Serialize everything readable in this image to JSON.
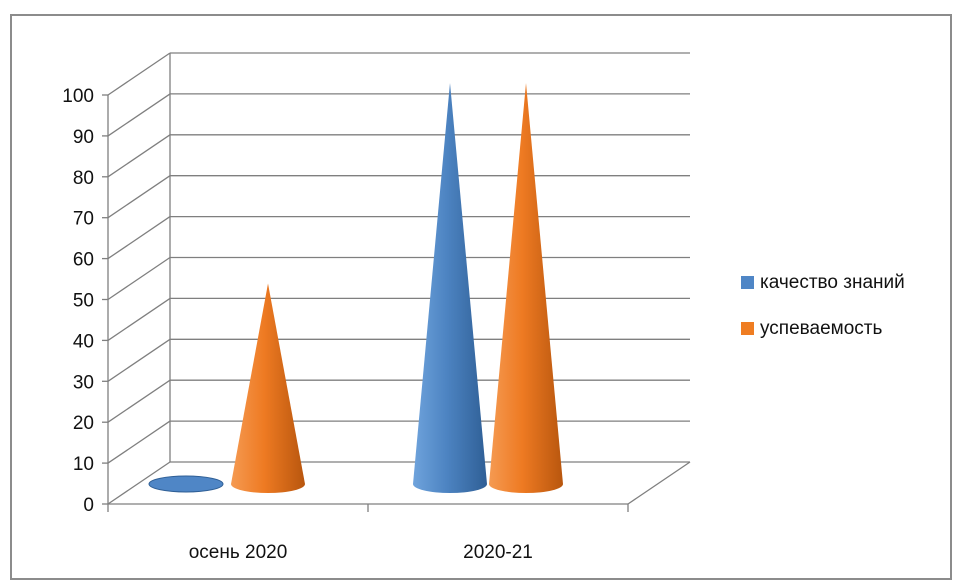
{
  "chart_data": {
    "type": "bar",
    "variant": "3d-cone",
    "title": "",
    "xlabel": "",
    "ylabel": "",
    "categories": [
      "осень 2020",
      "2020-21"
    ],
    "series": [
      {
        "name": "качество знаний",
        "values": [
          0,
          100
        ],
        "color": "#4f86c6"
      },
      {
        "name": "успеваемость",
        "values": [
          50,
          100
        ],
        "color": "#ef7d22"
      }
    ],
    "ylim": [
      0,
      100
    ],
    "yticks": [
      0,
      10,
      20,
      30,
      40,
      50,
      60,
      70,
      80,
      90,
      100
    ],
    "grid": true,
    "legend": "right"
  }
}
